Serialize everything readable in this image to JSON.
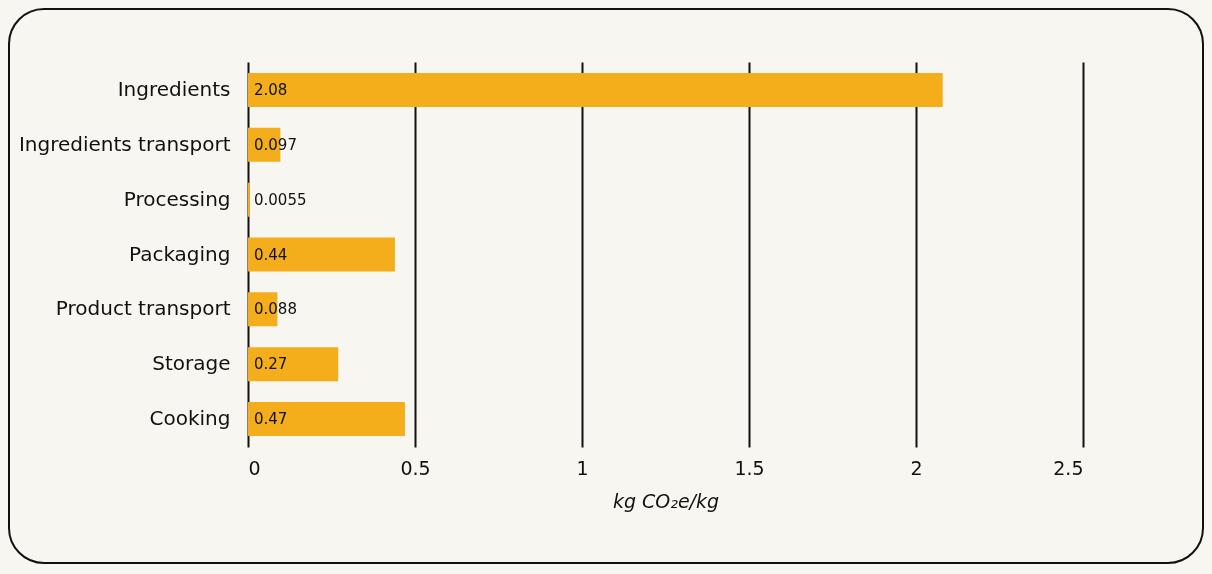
{
  "chart_data": {
    "type": "bar",
    "orientation": "horizontal",
    "xlabel": "kg CO₂e/kg",
    "categories": [
      "Ingredients",
      "Ingredients transport",
      "Processing",
      "Packaging",
      "Product transport",
      "Storage",
      "Cooking"
    ],
    "values": [
      2.08,
      0.097,
      0.0055,
      0.44,
      0.088,
      0.27,
      0.47
    ],
    "color": "#f5ae1b",
    "xlim": [
      0,
      2.5
    ],
    "xticks": [
      0,
      0.5,
      1,
      1.5,
      2,
      2.5
    ],
    "grid": "x",
    "data_labels": true
  }
}
